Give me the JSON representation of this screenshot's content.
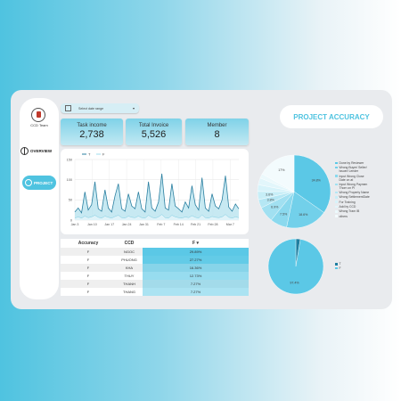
{
  "sidebar": {
    "logo_text": "CCD Team",
    "items": [
      {
        "label": "OVERVIEW",
        "icon": "globe-icon"
      },
      {
        "label": "PROJECT",
        "icon": "globe-icon",
        "active": true
      }
    ]
  },
  "date_range": {
    "label": "Select date range",
    "icon": "calendar-icon"
  },
  "kpis": [
    {
      "title": "Task income",
      "value": "2,738"
    },
    {
      "title": "Total Invoice",
      "value": "5,526"
    },
    {
      "title": "Member",
      "value": "8"
    }
  ],
  "page_title": "PROJECT ACCURACY",
  "colors": {
    "accent": "#4fc3e0",
    "line": "#2a7fa0",
    "fill": "#b9e4ef"
  },
  "chart_data": [
    {
      "type": "area",
      "legend": [
        "T",
        "F"
      ],
      "x_ticks": [
        "Jan 3",
        "Jan 10",
        "Jan 17",
        "Jan 24",
        "Jan 31",
        "Feb 7",
        "Feb 14",
        "Feb 21",
        "Feb 28",
        "Mar 7"
      ],
      "y_ticks": [
        "0",
        "50",
        "100",
        "150"
      ],
      "ylim": [
        0,
        150
      ],
      "series": [
        {
          "name": "T",
          "values": [
            20,
            30,
            18,
            70,
            25,
            38,
            95,
            28,
            22,
            75,
            30,
            20,
            60,
            90,
            28,
            22,
            65,
            35,
            28,
            70,
            28,
            20,
            95,
            30,
            22,
            45,
            115,
            30,
            25,
            90,
            35,
            28,
            20,
            45,
            30,
            85,
            38,
            25,
            105,
            30,
            22,
            65,
            35,
            28,
            50,
            110,
            32,
            22,
            40,
            28
          ]
        },
        {
          "name": "F",
          "values": [
            5,
            8,
            5,
            10,
            6,
            8,
            12,
            7,
            5,
            10,
            7,
            5,
            9,
            12,
            6,
            5,
            10,
            7,
            6,
            10,
            6,
            5,
            12,
            7,
            5,
            8,
            14,
            6,
            5,
            12,
            8,
            6,
            5,
            8,
            6,
            11,
            7,
            5,
            13,
            6,
            5,
            9,
            7,
            6,
            8,
            14,
            7,
            5,
            8,
            6
          ]
        }
      ]
    },
    {
      "type": "table",
      "columns": [
        "Accuracy",
        "CCD",
        "F"
      ],
      "rows": [
        {
          "accuracy": "F",
          "ccd": "NGOC",
          "f": "29.89%",
          "share": 0.2989
        },
        {
          "accuracy": "F",
          "ccd": "PHUONG",
          "f": "27.27%",
          "share": 0.2727
        },
        {
          "accuracy": "F",
          "ccd": "KHA",
          "f": "16.36%",
          "share": 0.1636
        },
        {
          "accuracy": "F",
          "ccd": "THUY",
          "f": "12.73%",
          "share": 0.1273
        },
        {
          "accuracy": "F",
          "ccd": "THANH",
          "f": "7.27%",
          "share": 0.0727
        },
        {
          "accuracy": "F",
          "ccd": "THANG",
          "f": "7.27%",
          "share": 0.0727
        }
      ]
    },
    {
      "type": "pie",
      "slices": [
        {
          "label": "Done by Reviewer",
          "value": 34.8,
          "text": "34.8%",
          "color": "#5bc8e6"
        },
        {
          "label": "Wrong Buyer/ Seller/ Issuer/ Lender",
          "value": 18.6,
          "text": "18.6%",
          "color": "#72d0ea"
        },
        {
          "label": "Input Wrong Close Date on at",
          "value": 7.5,
          "text": "7.5%",
          "color": "#8bd9ee"
        },
        {
          "label": "Input Wrong Paymen Thorn on Pi",
          "value": 6.9,
          "text": "6.9%",
          "color": "#a1e0f1"
        },
        {
          "label": "Wrong Property Name",
          "value": 3.8,
          "text": "3.8%",
          "color": "#b5e7f4"
        },
        {
          "label": "Wrong SettlementDate",
          "value": 3.6,
          "text": "3.6%",
          "color": "#c7eef7"
        },
        {
          "label": "For Training",
          "value": 3.0,
          "text": "",
          "color": "#d7f3fa"
        },
        {
          "label": "Add by CCD",
          "value": 3.0,
          "text": "",
          "color": "#e2f6fb"
        },
        {
          "label": "Wrong Tram IB",
          "value": 2.0,
          "text": "",
          "color": "#ecf9fc"
        },
        {
          "label": "others",
          "value": 17.0,
          "text": "17%",
          "color": "#f3fbfd"
        }
      ]
    },
    {
      "type": "pie",
      "slices": [
        {
          "label": "T",
          "value": 2.6,
          "text": "",
          "color": "#1f7ea0"
        },
        {
          "label": "F",
          "value": 97.4,
          "text": "97.4%",
          "color": "#5bc8e6"
        }
      ]
    }
  ]
}
